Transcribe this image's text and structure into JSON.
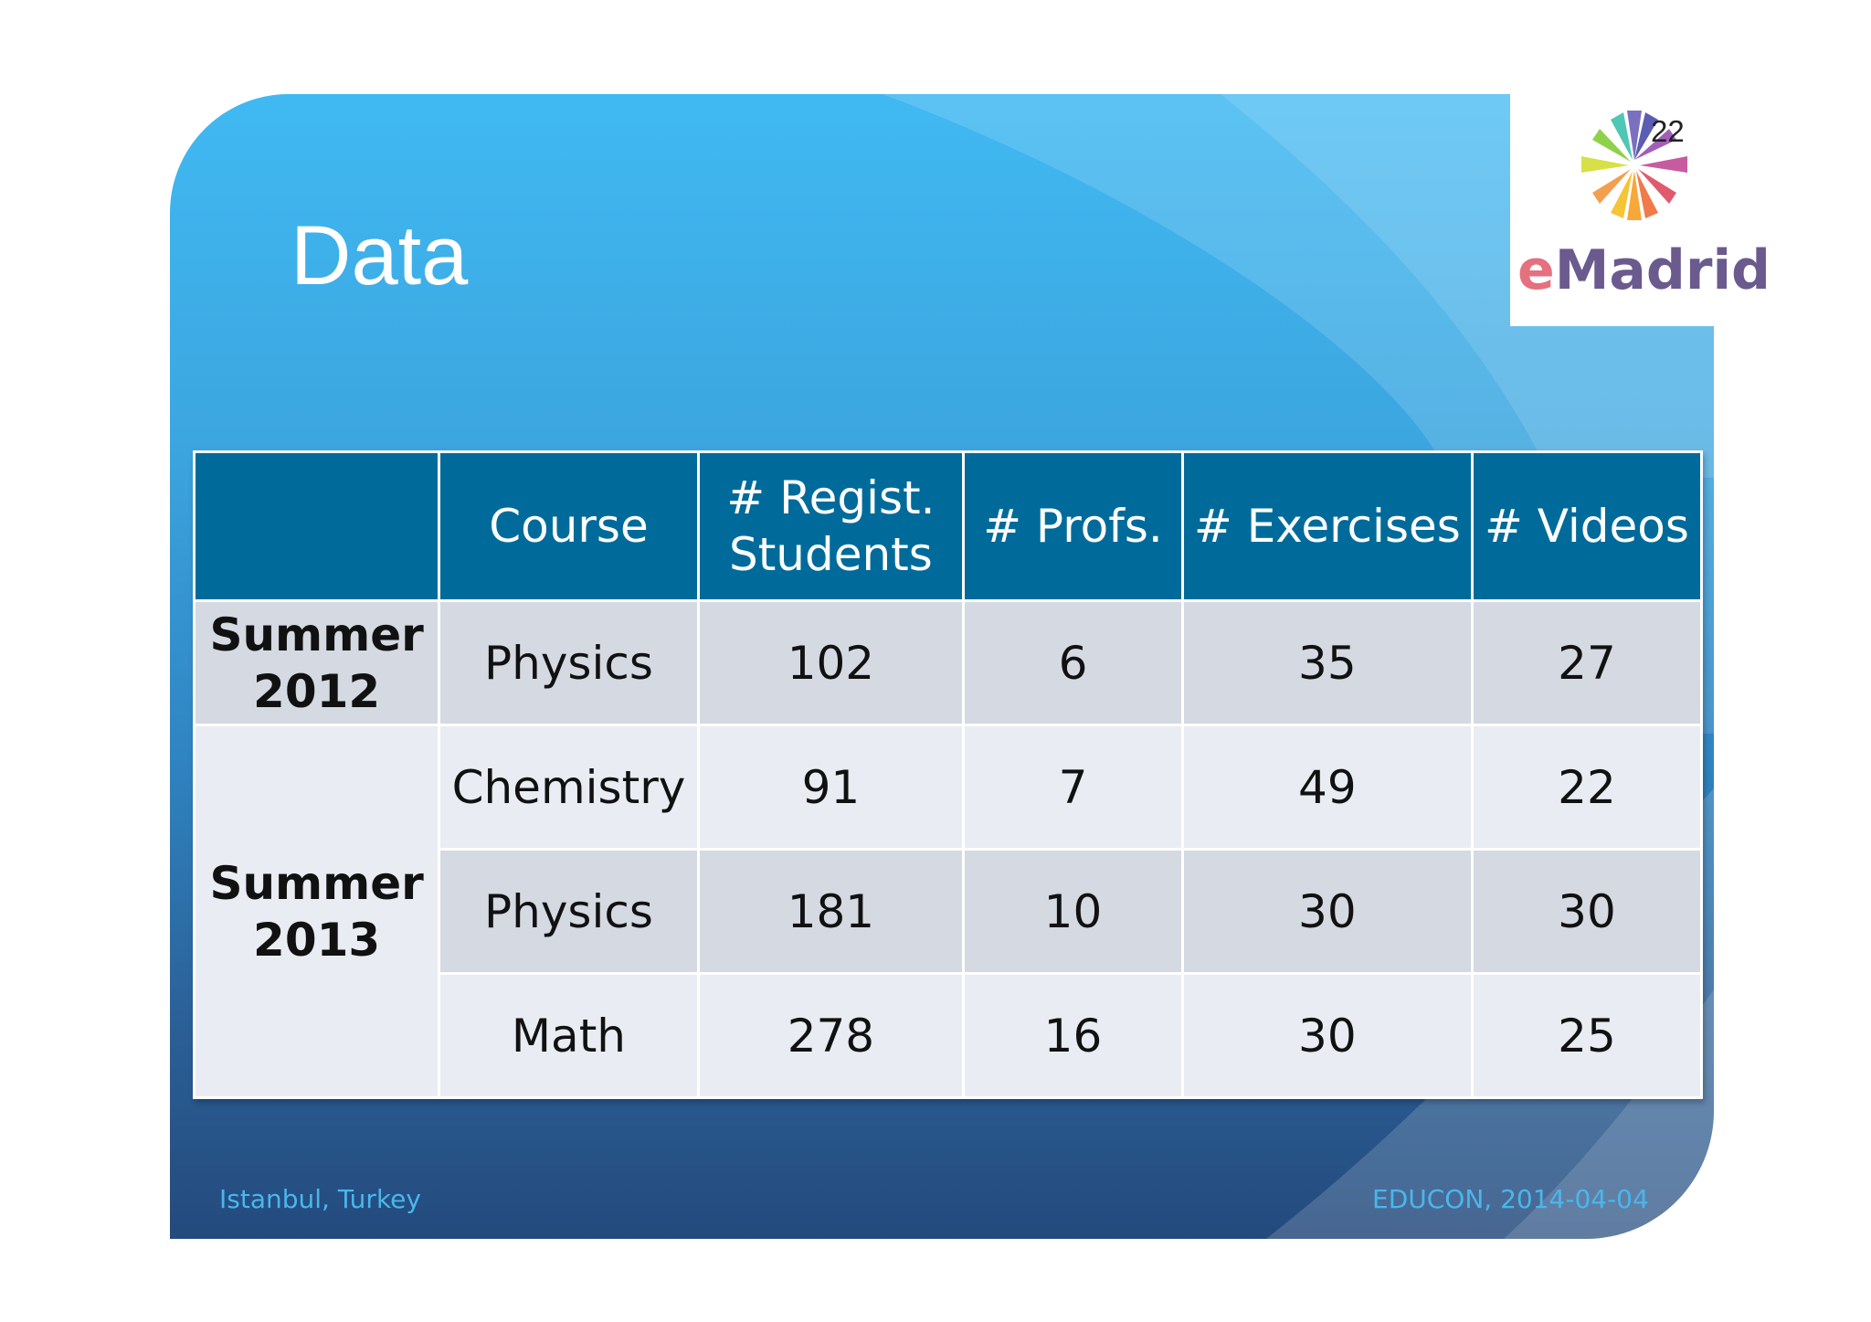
{
  "slide": {
    "title": "Data",
    "slide_number": "22",
    "logo": {
      "brand_first": "e",
      "brand_rest": "Madrid"
    }
  },
  "table": {
    "headers": [
      "",
      "Course",
      "# Regist.\nStudents",
      "# Profs.",
      "# Exercises",
      "# Videos"
    ],
    "header_lines": {
      "regist_line1": "# Regist.",
      "regist_line2": "Students"
    },
    "groups": [
      {
        "period_line1": "Summer",
        "period_line2": "2012",
        "rows": [
          {
            "course": "Physics",
            "students": "102",
            "profs": "6",
            "exercises": "35",
            "videos": "27"
          }
        ]
      },
      {
        "period_line1": "Summer",
        "period_line2": "2013",
        "rows": [
          {
            "course": "Chemistry",
            "students": "91",
            "profs": "7",
            "exercises": "49",
            "videos": "22"
          },
          {
            "course": "Physics",
            "students": "181",
            "profs": "10",
            "exercises": "30",
            "videos": "30"
          },
          {
            "course": "Math",
            "students": "278",
            "profs": "16",
            "exercises": "30",
            "videos": "25"
          }
        ]
      }
    ]
  },
  "footer": {
    "location": "Istanbul, Turkey",
    "event": "EDUCON, 2014-04-04"
  },
  "colors": {
    "header_bg": "#006b9a",
    "row_band_dark": "#d4d9e2",
    "row_band_light": "#e9ecf2",
    "footer_text": "#4ab6ec"
  }
}
